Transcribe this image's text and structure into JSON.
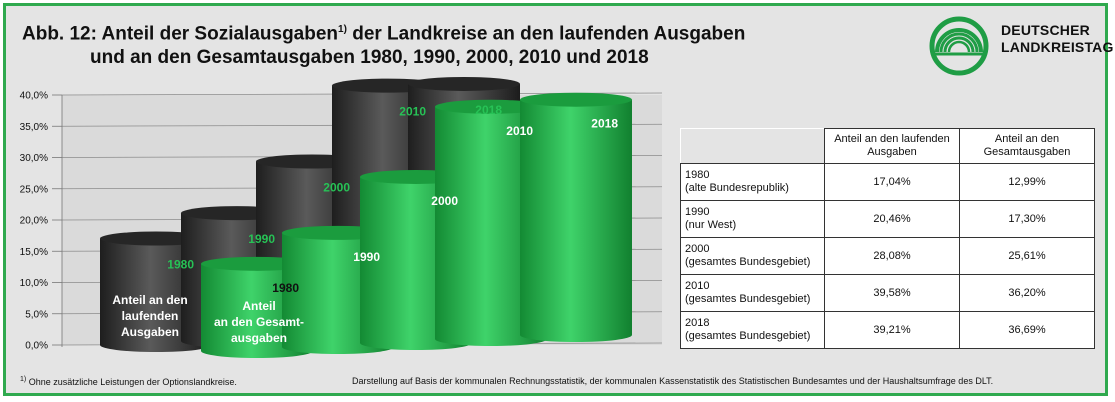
{
  "title": {
    "prefix": "Abb. 12: Anteil der Sozialausgaben",
    "footnote_mark": "1)",
    "suffix": " der Landkreise an den laufenden Ausgaben",
    "line2": "und an den Gesamtausgaben 1980, 1990, 2000, 2010 und 2018"
  },
  "logo": {
    "line1": "DEUTSCHER",
    "line2": "LANDKREISTAG",
    "color": "#1f9d45"
  },
  "colors": {
    "frame": "#2fa94e",
    "dark_series": "#3a3a3a",
    "green_series": "#27b24a",
    "background": "#e4e4e4"
  },
  "chart_data": {
    "type": "bar",
    "categories": [
      "1980",
      "1990",
      "2000",
      "2010",
      "2018"
    ],
    "series": [
      {
        "name": "Anteil an den laufenden Ausgaben",
        "label_lines": [
          "Anteil an den",
          "laufenden",
          "Ausgaben"
        ],
        "values": [
          17.04,
          20.46,
          28.08,
          39.58,
          39.21
        ]
      },
      {
        "name": "Anteil an den Gesamtausgaben",
        "label_lines": [
          "Anteil",
          "an den Gesamt-",
          "ausgaben"
        ],
        "values": [
          12.99,
          17.3,
          25.61,
          36.2,
          36.69
        ]
      }
    ],
    "ylim": [
      0,
      40
    ],
    "y_ticks": [
      "0,0%",
      "5,0%",
      "10,0%",
      "15,0%",
      "20,0%",
      "25,0%",
      "30,0%",
      "35,0%",
      "40,0%"
    ],
    "grid": true
  },
  "table": {
    "headers": [
      "Anteil an den laufenden Ausgaben",
      "Anteil an den Gesamtausgaben"
    ],
    "rows": [
      {
        "label": "1980",
        "sub": "(alte Bundesrepublik)",
        "v1": "17,04%",
        "v2": "12,99%"
      },
      {
        "label": "1990",
        "sub": "(nur West)",
        "v1": "20,46%",
        "v2": "17,30%"
      },
      {
        "label": "2000",
        "sub": "(gesamtes Bundesgebiet)",
        "v1": "28,08%",
        "v2": "25,61%"
      },
      {
        "label": "2010",
        "sub": "(gesamtes Bundesgebiet)",
        "v1": "39,58%",
        "v2": "36,20%"
      },
      {
        "label": "2018",
        "sub": "(gesamtes Bundesgebiet)",
        "v1": "39,21%",
        "v2": "36,69%"
      }
    ]
  },
  "footer": {
    "note_mark": "1)",
    "note": " Ohne zusätzliche Leistungen der Optionslandkreise.",
    "source": "Darstellung auf Basis der kommunalen Rechnungsstatistik, der kommunalen Kassenstatistik des Statistischen Bundesamtes und der Haushaltsumfrage des DLT."
  }
}
